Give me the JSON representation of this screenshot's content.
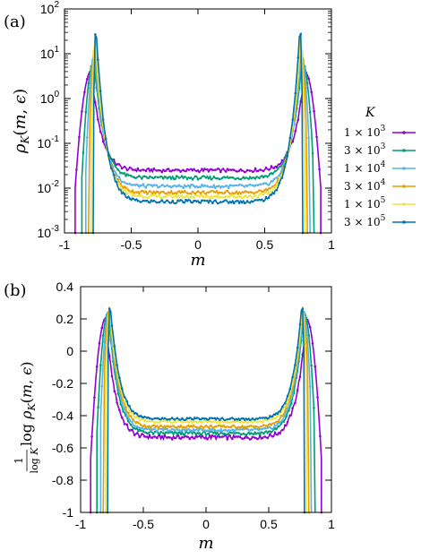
{
  "panel_labels": [
    "(a)",
    "(b)"
  ],
  "chart_data": [
    {
      "type": "line",
      "panel": "(a)",
      "xlabel": "m",
      "ylabel": "ρK(m, ε)",
      "xlim": [
        -1,
        1
      ],
      "ylim": [
        0.001,
        100
      ],
      "yscale": "log",
      "xticks": [
        "-1",
        "-0.5",
        "0",
        "0.5",
        "1"
      ],
      "yticks": [
        "10-3",
        "10-2",
        "10-1",
        "100",
        "101",
        "102"
      ],
      "legend_title": "K",
      "legend_position": "right",
      "series": [
        {
          "name": "1 × 10^3",
          "color": "#9400d3",
          "params": {
            "mp": 0.8,
            "edge": 0.92,
            "w": 0.1,
            "valley": 0.025,
            "peak": 4
          }
        },
        {
          "name": "3 × 10^3",
          "color": "#009e73",
          "params": {
            "mp": 0.78,
            "edge": 0.87,
            "w": 0.07,
            "valley": 0.017,
            "peak": 7
          }
        },
        {
          "name": "1 × 10^4",
          "color": "#56b4e9",
          "params": {
            "mp": 0.775,
            "edge": 0.84,
            "w": 0.05,
            "valley": 0.011,
            "peak": 10
          }
        },
        {
          "name": "3 × 10^4",
          "color": "#e69f00",
          "params": {
            "mp": 0.77,
            "edge": 0.82,
            "w": 0.04,
            "valley": 0.008,
            "peak": 14
          }
        },
        {
          "name": "1 × 10^5",
          "color": "#f0e442",
          "params": {
            "mp": 0.77,
            "edge": 0.8,
            "w": 0.03,
            "valley": 0.0065,
            "peak": 22
          }
        },
        {
          "name": "3 × 10^5",
          "color": "#0072b2",
          "params": {
            "mp": 0.765,
            "edge": 0.785,
            "w": 0.02,
            "valley": 0.005,
            "peak": 40
          }
        }
      ]
    },
    {
      "type": "line",
      "panel": "(b)",
      "xlabel": "m",
      "ylabel": "1/log K · log ρK(m, ε)",
      "xlim": [
        -1,
        1
      ],
      "ylim": [
        -1,
        0.4
      ],
      "xticks": [
        "-1",
        "-0.5",
        "0",
        "0.5",
        "1"
      ],
      "yticks": [
        "-1",
        "-0.8",
        "-0.6",
        "-0.4",
        "-0.2",
        "0",
        "0.2",
        "0.4"
      ],
      "series": [
        {
          "name": "1 × 10^3",
          "color": "#9400d3",
          "params": {
            "K": 1000
          }
        },
        {
          "name": "3 × 10^3",
          "color": "#009e73",
          "params": {
            "K": 3000
          }
        },
        {
          "name": "1 × 10^4",
          "color": "#56b4e9",
          "params": {
            "K": 10000
          }
        },
        {
          "name": "3 × 10^4",
          "color": "#e69f00",
          "params": {
            "K": 30000
          }
        },
        {
          "name": "1 × 10^5",
          "color": "#f0e442",
          "params": {
            "K": 100000
          }
        },
        {
          "name": "3 × 10^5",
          "color": "#0072b2",
          "params": {
            "K": 300000
          }
        }
      ]
    }
  ]
}
